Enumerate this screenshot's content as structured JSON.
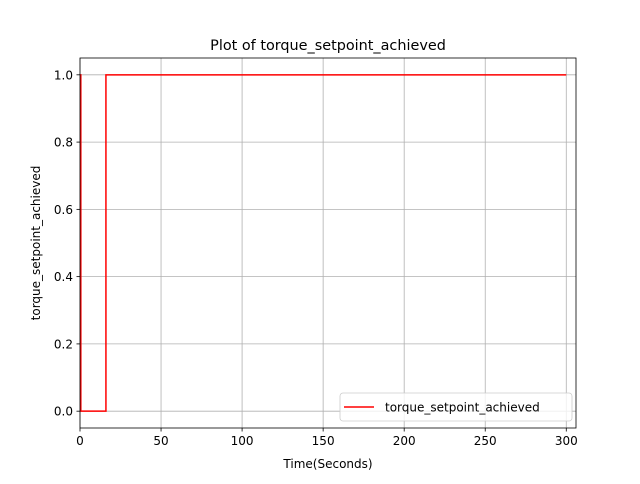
{
  "chart_data": {
    "type": "line",
    "title": "Plot of torque_setpoint_achieved",
    "xlabel": "Time(Seconds)",
    "ylabel": "torque_setpoint_achieved",
    "xlim": [
      0,
      306
    ],
    "ylim": [
      -0.05,
      1.05
    ],
    "xticks": [
      0,
      50,
      100,
      150,
      200,
      250,
      300
    ],
    "yticks": [
      0.0,
      0.2,
      0.4,
      0.6,
      0.8,
      1.0
    ],
    "xtick_labels": [
      "0",
      "50",
      "100",
      "150",
      "200",
      "250",
      "300"
    ],
    "ytick_labels": [
      "0.0",
      "0.2",
      "0.4",
      "0.6",
      "0.8",
      "1.0"
    ],
    "grid": true,
    "legend_position": "lower-right",
    "series": [
      {
        "name": "torque_setpoint_achieved",
        "color": "#ff0000",
        "drawstyle": "steps",
        "x": [
          0,
          0.5,
          0.5,
          16,
          16,
          300
        ],
        "y": [
          1,
          1,
          0,
          0,
          1,
          1
        ]
      }
    ]
  }
}
